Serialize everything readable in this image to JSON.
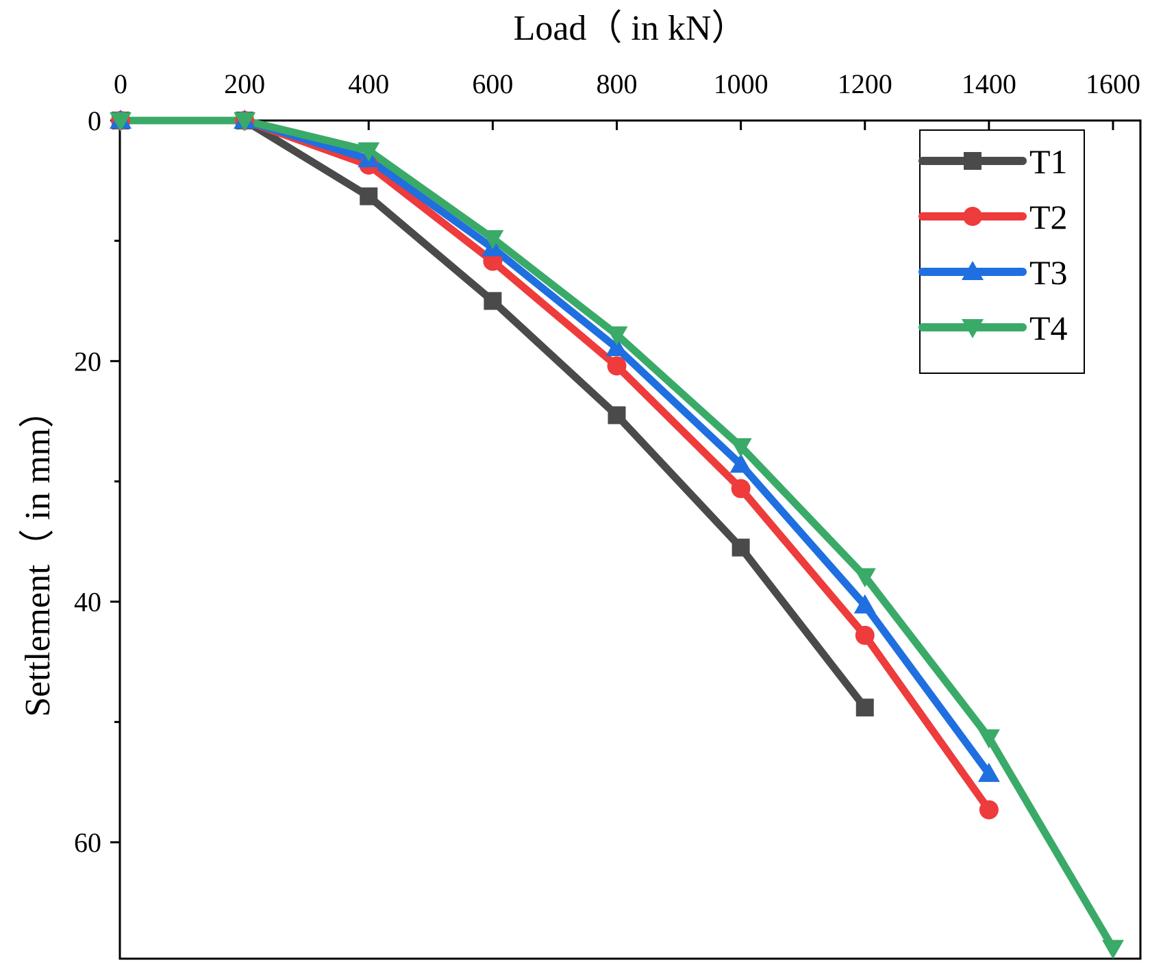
{
  "chart_data": {
    "type": "line",
    "title": "",
    "xlabel": "Load（ in kN）",
    "ylabel": "Settlement（ in mm）",
    "xlim": [
      0,
      1650
    ],
    "ylim": [
      0,
      70
    ],
    "y_inverted": true,
    "x_axis_position": "top",
    "x_ticks": [
      0,
      200,
      400,
      600,
      800,
      1000,
      1200,
      1400,
      1600
    ],
    "y_ticks": [
      0,
      20,
      40,
      60
    ],
    "y_minor_ticks": [
      10,
      30,
      50
    ],
    "legend_position": "top-right",
    "grid": false,
    "series": [
      {
        "name": "T1",
        "color": "#4a4a4a",
        "marker": "square",
        "x": [
          0,
          200,
          400,
          600,
          800,
          1000,
          1200
        ],
        "y": [
          0,
          0,
          6.3,
          15,
          24.5,
          35.5,
          48.8
        ]
      },
      {
        "name": "T2",
        "color": "#ee3b3b",
        "marker": "circle",
        "x": [
          0,
          200,
          400,
          600,
          800,
          1000,
          1200,
          1400
        ],
        "y": [
          0,
          0,
          3.7,
          11.7,
          20.4,
          30.6,
          42.8,
          57.3
        ]
      },
      {
        "name": "T3",
        "color": "#1f6fe0",
        "marker": "triangle-up",
        "x": [
          0,
          200,
          400,
          600,
          800,
          1000,
          1200,
          1400
        ],
        "y": [
          0,
          0,
          3.2,
          10.6,
          18.9,
          28.6,
          40.3,
          54.3
        ]
      },
      {
        "name": "T4",
        "color": "#3aaa68",
        "marker": "triangle-down",
        "x": [
          0,
          200,
          400,
          600,
          800,
          1000,
          1200,
          1400,
          1600
        ],
        "y": [
          0,
          0,
          2.5,
          9.8,
          17.8,
          27.1,
          37.9,
          51.3,
          68.8
        ]
      }
    ]
  }
}
